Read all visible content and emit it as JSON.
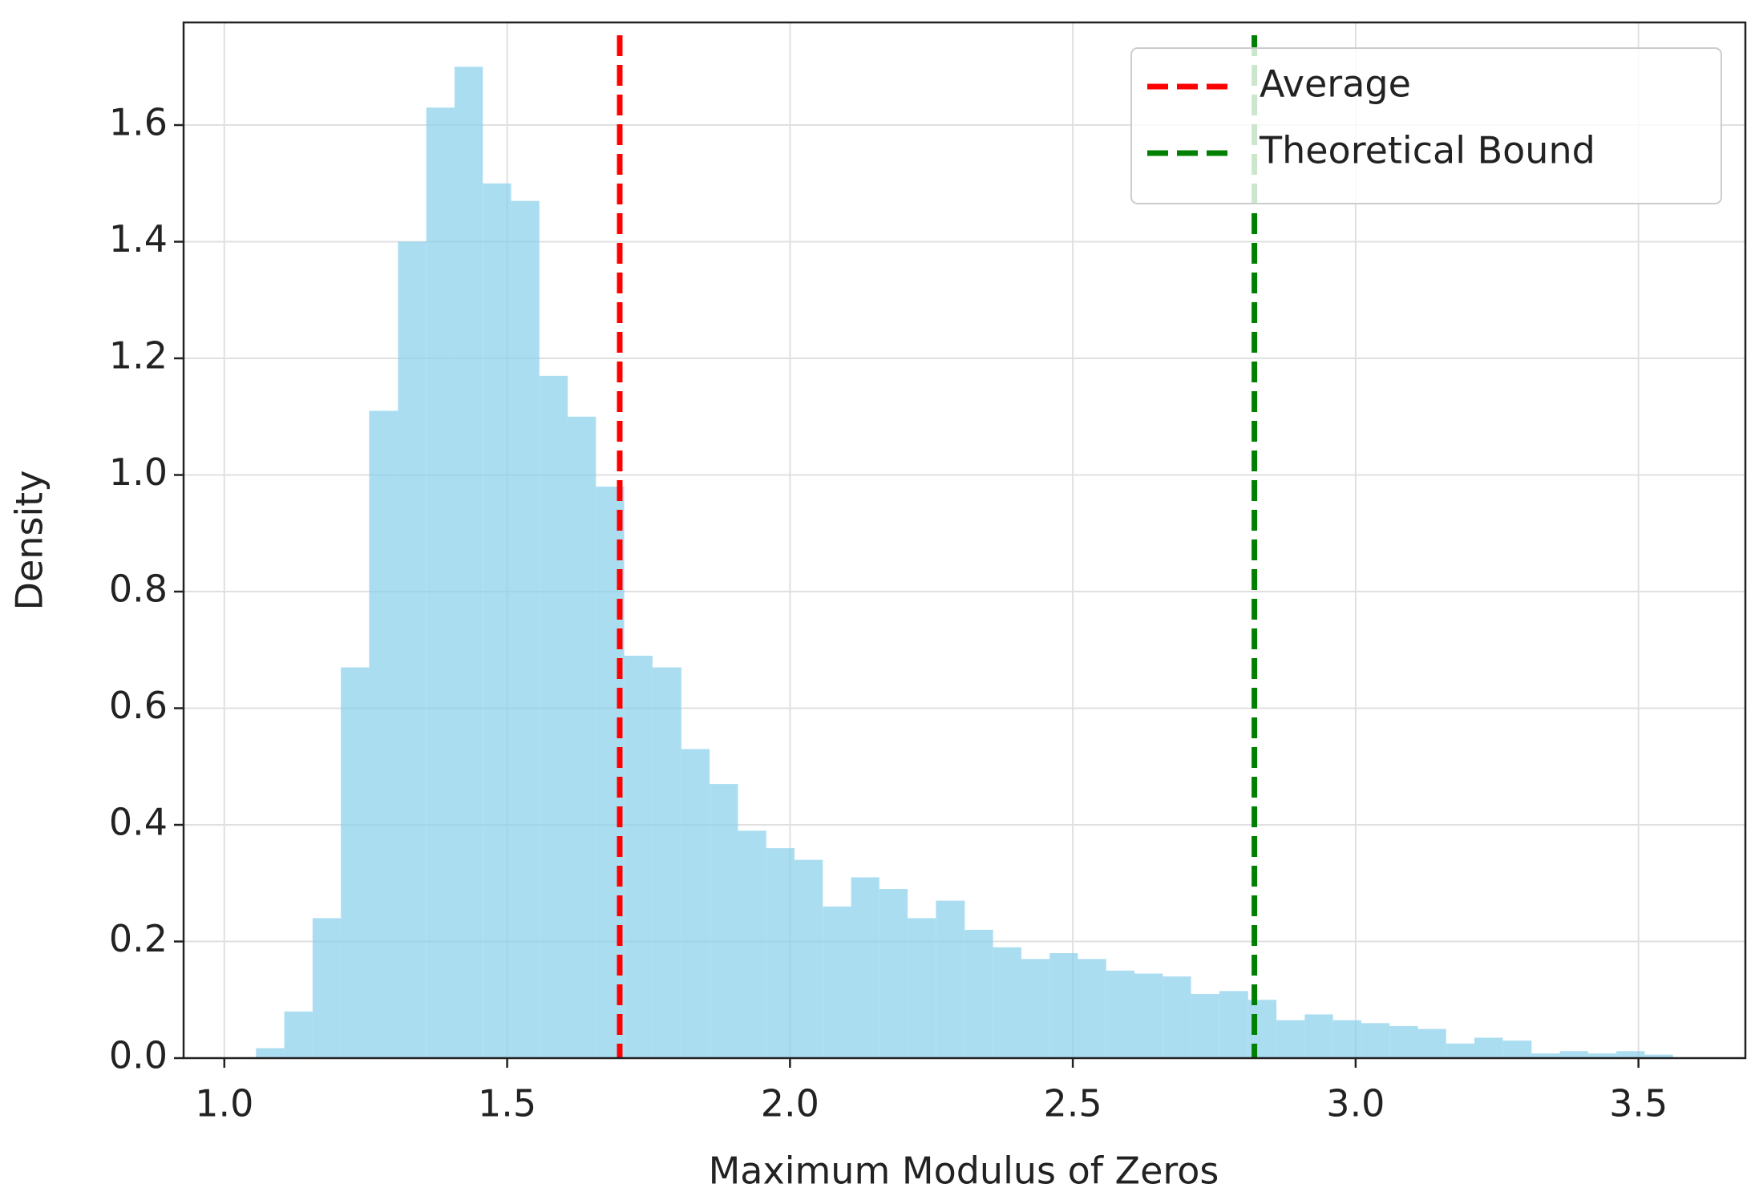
{
  "chart_data": {
    "type": "histogram",
    "xlabel": "Maximum Modulus of Zeros",
    "ylabel": "Density",
    "bins": [
      1.056,
      1.106,
      1.156,
      1.206,
      1.256,
      1.307,
      1.357,
      1.407,
      1.457,
      1.507,
      1.557,
      1.607,
      1.657,
      1.707,
      1.757,
      1.808,
      1.858,
      1.908,
      1.958,
      2.008,
      2.058,
      2.108,
      2.158,
      2.208,
      2.258,
      2.309,
      2.359,
      2.409,
      2.459,
      2.509,
      2.559,
      2.609,
      2.659,
      2.709,
      2.759,
      2.81,
      2.86,
      2.91,
      2.96,
      3.01,
      3.06,
      3.11,
      3.16,
      3.21,
      3.26,
      3.311,
      3.361,
      3.411,
      3.461,
      3.511,
      3.561
    ],
    "counts": [
      0.017,
      0.08,
      0.24,
      0.67,
      1.11,
      1.4,
      1.63,
      1.7,
      1.5,
      1.47,
      1.17,
      1.1,
      0.98,
      0.69,
      0.67,
      0.53,
      0.47,
      0.39,
      0.36,
      0.34,
      0.26,
      0.31,
      0.29,
      0.24,
      0.27,
      0.22,
      0.19,
      0.17,
      0.18,
      0.17,
      0.15,
      0.145,
      0.14,
      0.11,
      0.115,
      0.1,
      0.065,
      0.075,
      0.065,
      0.06,
      0.055,
      0.05,
      0.025,
      0.035,
      0.03,
      0.008,
      0.012,
      0.008,
      0.012,
      0.006
    ],
    "color": "#87ceeb",
    "vlines": [
      {
        "name": "Average",
        "value": 1.699,
        "color": "#ff0000"
      },
      {
        "name": "Theoretical Bound",
        "value": 2.821,
        "color": "#008000"
      }
    ],
    "xlim": [
      0.928,
      3.689
    ],
    "ylim": [
      0,
      1.776
    ],
    "xticks": [
      {
        "value": 1,
        "label": "1.0"
      },
      1.5,
      {
        "value": 2,
        "label": "2.0"
      },
      2.5,
      {
        "value": 3,
        "label": "3.0"
      },
      3.5
    ],
    "yticks": [
      {
        "value": 0,
        "label": "0.0"
      },
      0.2,
      0.4,
      0.6,
      0.8,
      {
        "value": 1,
        "label": "1.0"
      },
      1.2,
      1.4,
      1.6
    ],
    "grid": true,
    "legend": "upper right"
  }
}
